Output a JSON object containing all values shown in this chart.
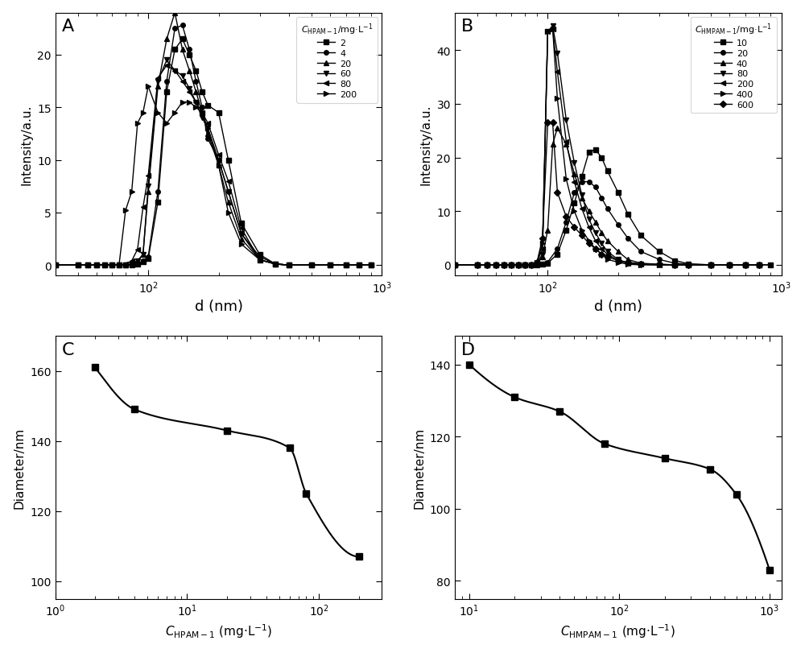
{
  "panel_A": {
    "label": "A",
    "xlabel": "d (nm)",
    "ylabel": "Intensity/a.u.",
    "legend_title": "$C_{\\mathrm{HPAM-1}}$/mg·L$^{-1}$",
    "series": [
      {
        "label": "2",
        "marker": "s",
        "x": [
          40,
          50,
          55,
          60,
          65,
          70,
          75,
          80,
          85,
          90,
          95,
          100,
          110,
          120,
          130,
          140,
          150,
          160,
          170,
          180,
          200,
          220,
          250,
          300,
          350,
          400,
          500,
          600,
          700,
          800,
          900
        ],
        "y": [
          0,
          0,
          0,
          0,
          0,
          0,
          0,
          0,
          0,
          0.1,
          0.3,
          0.6,
          6.0,
          16.5,
          20.5,
          21.5,
          20.0,
          18.5,
          16.5,
          15.2,
          14.5,
          10.0,
          4.0,
          1.0,
          0.1,
          0,
          0,
          0,
          0,
          0,
          0
        ]
      },
      {
        "label": "4",
        "marker": "o",
        "x": [
          40,
          50,
          55,
          60,
          65,
          70,
          75,
          80,
          85,
          90,
          95,
          100,
          110,
          120,
          130,
          140,
          150,
          160,
          170,
          180,
          200,
          220,
          250,
          300,
          350,
          400,
          500,
          600,
          700,
          800,
          900
        ],
        "y": [
          0,
          0,
          0,
          0,
          0,
          0,
          0,
          0,
          0,
          0.1,
          0.4,
          0.8,
          7.0,
          17.5,
          22.5,
          22.8,
          20.5,
          17.5,
          15.0,
          12.0,
          10.0,
          7.0,
          3.0,
          0.8,
          0.1,
          0,
          0,
          0,
          0,
          0,
          0
        ]
      },
      {
        "label": "20",
        "marker": "^",
        "x": [
          40,
          50,
          55,
          60,
          65,
          70,
          75,
          80,
          85,
          90,
          95,
          100,
          110,
          120,
          130,
          140,
          150,
          160,
          170,
          180,
          200,
          220,
          250,
          300,
          350,
          400,
          500,
          600,
          700,
          800,
          900
        ],
        "y": [
          0,
          0,
          0,
          0,
          0,
          0,
          0,
          0,
          0.1,
          0.4,
          1.0,
          7.0,
          17.0,
          21.5,
          24.0,
          20.5,
          18.5,
          16.5,
          14.5,
          12.5,
          9.5,
          6.0,
          2.5,
          0.5,
          0.1,
          0,
          0,
          0,
          0,
          0,
          0
        ]
      },
      {
        "label": "60",
        "marker": "v",
        "x": [
          40,
          50,
          55,
          60,
          65,
          70,
          75,
          80,
          85,
          90,
          95,
          100,
          110,
          120,
          130,
          140,
          150,
          160,
          170,
          180,
          200,
          220,
          250,
          300,
          350,
          400,
          500,
          600,
          700,
          800,
          900
        ],
        "y": [
          0,
          0,
          0,
          0,
          0,
          0,
          0,
          0,
          0.1,
          0.4,
          1.0,
          7.5,
          17.5,
          19.5,
          18.5,
          18.0,
          16.8,
          15.5,
          14.0,
          13.0,
          10.0,
          7.0,
          3.0,
          0.5,
          0.1,
          0,
          0,
          0,
          0,
          0,
          0
        ]
      },
      {
        "label": "80",
        "marker": "<",
        "x": [
          40,
          50,
          55,
          60,
          65,
          70,
          75,
          80,
          85,
          90,
          95,
          100,
          110,
          120,
          130,
          140,
          150,
          160,
          170,
          180,
          200,
          220,
          250,
          300,
          350,
          400,
          500,
          600,
          700,
          800,
          900
        ],
        "y": [
          0,
          0,
          0,
          0,
          0,
          0,
          0,
          0.1,
          0.4,
          1.5,
          5.5,
          8.5,
          17.8,
          19.0,
          18.5,
          17.5,
          16.5,
          15.5,
          14.5,
          13.5,
          10.5,
          8.0,
          3.5,
          0.5,
          0.1,
          0,
          0,
          0,
          0,
          0,
          0
        ]
      },
      {
        "label": "200",
        "marker": ">",
        "x": [
          40,
          50,
          55,
          60,
          65,
          70,
          75,
          80,
          85,
          90,
          95,
          100,
          110,
          120,
          130,
          140,
          150,
          160,
          170,
          180,
          200,
          220,
          250,
          300,
          350,
          400,
          500,
          600,
          700,
          800,
          900
        ],
        "y": [
          0,
          0,
          0,
          0,
          0,
          0,
          0,
          5.2,
          7.0,
          13.5,
          14.5,
          17.0,
          14.5,
          13.5,
          14.5,
          15.5,
          15.5,
          15.0,
          14.5,
          13.0,
          9.5,
          5.0,
          2.0,
          0.5,
          0.1,
          0,
          0,
          0,
          0,
          0,
          0
        ]
      }
    ],
    "xlim": [
      40,
      1000
    ],
    "ylim": [
      -1,
      24
    ],
    "yticks": [
      0,
      5,
      10,
      15,
      20
    ]
  },
  "panel_B": {
    "label": "B",
    "xlabel": "d (nm)",
    "ylabel": "Intensity/a.u.",
    "legend_title": "$C_{\\mathrm{HMPAM-1}}$/mg·L$^{-1}$",
    "series": [
      {
        "label": "10",
        "marker": "s",
        "x": [
          40,
          50,
          55,
          60,
          65,
          70,
          75,
          80,
          85,
          90,
          95,
          100,
          110,
          120,
          130,
          140,
          150,
          160,
          170,
          180,
          200,
          220,
          250,
          300,
          350,
          400,
          500,
          600,
          700,
          800,
          900
        ],
        "y": [
          0,
          0,
          0,
          0,
          0,
          0,
          0,
          0,
          0,
          0,
          0.1,
          0.3,
          2.0,
          6.5,
          11.5,
          16.5,
          21.0,
          21.5,
          20.0,
          17.5,
          13.5,
          9.5,
          5.5,
          2.5,
          0.8,
          0.2,
          0,
          0,
          0,
          0,
          0
        ]
      },
      {
        "label": "20",
        "marker": "o",
        "x": [
          40,
          50,
          55,
          60,
          65,
          70,
          75,
          80,
          85,
          90,
          95,
          100,
          110,
          120,
          130,
          140,
          150,
          160,
          170,
          180,
          200,
          220,
          250,
          300,
          350,
          400,
          500,
          600,
          700,
          800,
          900
        ],
        "y": [
          0,
          0,
          0,
          0,
          0,
          0,
          0,
          0,
          0,
          0,
          0.1,
          0.5,
          3.0,
          8.0,
          13.5,
          15.5,
          15.5,
          14.5,
          12.5,
          10.5,
          7.5,
          5.0,
          2.5,
          1.0,
          0.3,
          0.1,
          0,
          0,
          0,
          0,
          0
        ]
      },
      {
        "label": "40",
        "marker": "^",
        "x": [
          40,
          50,
          55,
          60,
          65,
          70,
          75,
          80,
          85,
          90,
          95,
          100,
          105,
          110,
          120,
          130,
          140,
          150,
          160,
          170,
          180,
          200,
          220,
          250,
          300,
          350,
          400,
          500,
          600,
          700,
          800
        ],
        "y": [
          0,
          0,
          0,
          0,
          0,
          0,
          0,
          0,
          0,
          0.3,
          1.5,
          6.5,
          22.5,
          25.5,
          22.5,
          17.0,
          12.5,
          10.0,
          8.0,
          6.0,
          4.5,
          2.5,
          1.0,
          0.3,
          0.1,
          0,
          0,
          0,
          0,
          0,
          0
        ]
      },
      {
        "label": "80",
        "marker": "v",
        "x": [
          40,
          50,
          55,
          60,
          65,
          70,
          75,
          80,
          85,
          90,
          95,
          100,
          105,
          110,
          120,
          130,
          140,
          150,
          160,
          170,
          180,
          200,
          220,
          250,
          300,
          350,
          400,
          500,
          600,
          700,
          800
        ],
        "y": [
          0,
          0,
          0,
          0,
          0,
          0,
          0,
          0,
          0,
          0.3,
          2.0,
          43.5,
          44.5,
          39.5,
          27.0,
          19.0,
          13.0,
          8.5,
          6.0,
          4.0,
          2.5,
          1.0,
          0.3,
          0.1,
          0,
          0,
          0,
          0,
          0,
          0,
          0
        ]
      },
      {
        "label": "200",
        "marker": "<",
        "x": [
          40,
          50,
          55,
          60,
          65,
          70,
          75,
          80,
          85,
          90,
          95,
          100,
          105,
          110,
          120,
          130,
          140,
          150,
          160,
          170,
          180,
          200,
          220,
          250,
          300,
          350,
          400,
          500,
          600,
          700,
          800
        ],
        "y": [
          0,
          0,
          0,
          0,
          0,
          0,
          0,
          0,
          0,
          0.5,
          3.0,
          43.5,
          44.0,
          36.0,
          23.0,
          15.5,
          10.5,
          7.0,
          4.5,
          3.0,
          2.0,
          0.8,
          0.3,
          0.1,
          0,
          0,
          0,
          0,
          0,
          0,
          0
        ]
      },
      {
        "label": "400",
        "marker": ">",
        "x": [
          40,
          50,
          55,
          60,
          65,
          70,
          75,
          80,
          85,
          90,
          95,
          100,
          105,
          110,
          120,
          130,
          140,
          150,
          160,
          170,
          180,
          200,
          220,
          250,
          300,
          350,
          400,
          500,
          600,
          700,
          800
        ],
        "y": [
          0,
          0,
          0,
          0,
          0,
          0,
          0,
          0,
          0,
          0.5,
          4.0,
          43.5,
          44.0,
          31.0,
          16.0,
          10.0,
          6.5,
          4.5,
          3.0,
          2.0,
          1.0,
          0.5,
          0.1,
          0,
          0,
          0,
          0,
          0,
          0,
          0,
          0
        ]
      },
      {
        "label": "600",
        "marker": "D",
        "x": [
          40,
          50,
          55,
          60,
          65,
          70,
          75,
          80,
          85,
          90,
          95,
          100,
          105,
          110,
          120,
          130,
          140,
          150,
          160,
          170,
          180,
          200,
          220,
          250,
          300,
          350,
          400,
          500,
          600,
          700,
          800
        ],
        "y": [
          0,
          0,
          0,
          0,
          0,
          0,
          0,
          0,
          0,
          0.5,
          5.0,
          26.5,
          26.5,
          13.5,
          9.0,
          7.0,
          5.5,
          4.0,
          3.0,
          2.0,
          1.5,
          0.8,
          0.5,
          0.2,
          0.1,
          0,
          0,
          0,
          0,
          0,
          0
        ]
      }
    ],
    "xlim": [
      40,
      1000
    ],
    "ylim": [
      -2,
      47
    ],
    "yticks": [
      0,
      10,
      20,
      30,
      40
    ]
  },
  "panel_C": {
    "label": "C",
    "xlabel": "$C_{\\mathrm{HPAM-1}}$ (mg·L$^{-1}$)",
    "ylabel": "Diameter/nm",
    "x": [
      2,
      4,
      20,
      60,
      80,
      200
    ],
    "y": [
      161,
      149,
      143,
      138,
      125,
      107
    ],
    "xlim": [
      1,
      300
    ],
    "ylim": [
      95,
      170
    ],
    "yticks": [
      100,
      120,
      140,
      160
    ]
  },
  "panel_D": {
    "label": "D",
    "xlabel": "$C_{\\mathrm{HMPAM-1}}$ (mg·L$^{-1}$)",
    "ylabel": "Diameter/nm",
    "x": [
      10,
      20,
      40,
      80,
      200,
      400,
      600,
      1000
    ],
    "y": [
      140,
      131,
      127,
      118,
      114,
      111,
      104,
      83
    ],
    "xlim": [
      8,
      1200
    ],
    "ylim": [
      75,
      148
    ],
    "yticks": [
      80,
      100,
      120,
      140
    ]
  }
}
